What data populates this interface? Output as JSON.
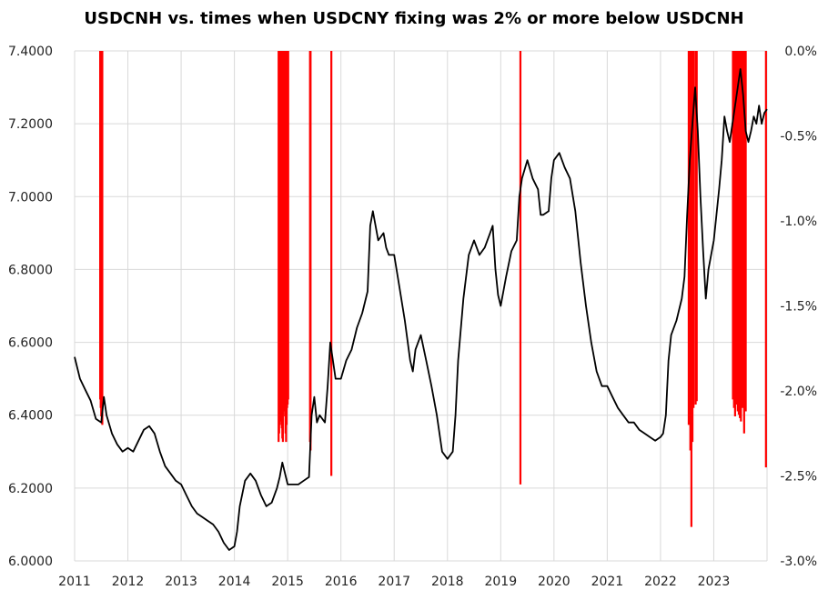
{
  "chart_data": {
    "type": "line",
    "title": "USDCNH vs. times when USDCNY fixing was 2% or more below USDCNH",
    "grid": true,
    "legend": "none",
    "x_axis": {
      "ticks": [
        "2011",
        "2012",
        "2013",
        "2014",
        "2015",
        "2016",
        "2017",
        "2018",
        "2019",
        "2020",
        "2021",
        "2022",
        "2023"
      ],
      "range": [
        2011.0,
        2024.0
      ]
    },
    "y_left": {
      "ticks": [
        "7.4000",
        "7.2000",
        "7.0000",
        "6.8000",
        "6.6000",
        "6.4000",
        "6.2000",
        "6.0000"
      ],
      "range": [
        6.0,
        7.4
      ]
    },
    "y_right": {
      "ticks": [
        "0.0%",
        "-0.5%",
        "-1.0%",
        "-1.5%",
        "-2.0%",
        "-2.5%",
        "-3.0%"
      ],
      "range": [
        -3.0,
        0.0
      ]
    },
    "series": [
      {
        "axis": "left",
        "color": "#000000",
        "points": [
          [
            2011.0,
            6.56
          ],
          [
            2011.1,
            6.5
          ],
          [
            2011.2,
            6.47
          ],
          [
            2011.3,
            6.44
          ],
          [
            2011.4,
            6.39
          ],
          [
            2011.5,
            6.38
          ],
          [
            2011.55,
            6.45
          ],
          [
            2011.6,
            6.4
          ],
          [
            2011.7,
            6.35
          ],
          [
            2011.8,
            6.32
          ],
          [
            2011.9,
            6.3
          ],
          [
            2012.0,
            6.31
          ],
          [
            2012.1,
            6.3
          ],
          [
            2012.2,
            6.33
          ],
          [
            2012.3,
            6.36
          ],
          [
            2012.4,
            6.37
          ],
          [
            2012.5,
            6.35
          ],
          [
            2012.6,
            6.3
          ],
          [
            2012.7,
            6.26
          ],
          [
            2012.8,
            6.24
          ],
          [
            2012.9,
            6.22
          ],
          [
            2013.0,
            6.21
          ],
          [
            2013.1,
            6.18
          ],
          [
            2013.2,
            6.15
          ],
          [
            2013.3,
            6.13
          ],
          [
            2013.4,
            6.12
          ],
          [
            2013.5,
            6.11
          ],
          [
            2013.6,
            6.1
          ],
          [
            2013.7,
            6.08
          ],
          [
            2013.8,
            6.05
          ],
          [
            2013.9,
            6.03
          ],
          [
            2014.0,
            6.04
          ],
          [
            2014.05,
            6.08
          ],
          [
            2014.1,
            6.15
          ],
          [
            2014.2,
            6.22
          ],
          [
            2014.3,
            6.24
          ],
          [
            2014.4,
            6.22
          ],
          [
            2014.5,
            6.18
          ],
          [
            2014.6,
            6.15
          ],
          [
            2014.7,
            6.16
          ],
          [
            2014.8,
            6.2
          ],
          [
            2014.85,
            6.23
          ],
          [
            2014.9,
            6.27
          ],
          [
            2015.0,
            6.21
          ],
          [
            2015.1,
            6.21
          ],
          [
            2015.2,
            6.21
          ],
          [
            2015.3,
            6.22
          ],
          [
            2015.4,
            6.23
          ],
          [
            2015.45,
            6.4
          ],
          [
            2015.5,
            6.45
          ],
          [
            2015.55,
            6.38
          ],
          [
            2015.6,
            6.4
          ],
          [
            2015.7,
            6.38
          ],
          [
            2015.75,
            6.48
          ],
          [
            2015.8,
            6.6
          ],
          [
            2015.9,
            6.5
          ],
          [
            2016.0,
            6.5
          ],
          [
            2016.1,
            6.55
          ],
          [
            2016.2,
            6.58
          ],
          [
            2016.3,
            6.64
          ],
          [
            2016.4,
            6.68
          ],
          [
            2016.5,
            6.74
          ],
          [
            2016.55,
            6.92
          ],
          [
            2016.6,
            6.96
          ],
          [
            2016.7,
            6.88
          ],
          [
            2016.8,
            6.9
          ],
          [
            2016.85,
            6.86
          ],
          [
            2016.9,
            6.84
          ],
          [
            2017.0,
            6.84
          ],
          [
            2017.1,
            6.75
          ],
          [
            2017.2,
            6.66
          ],
          [
            2017.3,
            6.55
          ],
          [
            2017.35,
            6.52
          ],
          [
            2017.4,
            6.58
          ],
          [
            2017.5,
            6.62
          ],
          [
            2017.6,
            6.55
          ],
          [
            2017.7,
            6.48
          ],
          [
            2017.8,
            6.4
          ],
          [
            2017.9,
            6.3
          ],
          [
            2018.0,
            6.28
          ],
          [
            2018.1,
            6.3
          ],
          [
            2018.15,
            6.4
          ],
          [
            2018.2,
            6.55
          ],
          [
            2018.3,
            6.72
          ],
          [
            2018.4,
            6.84
          ],
          [
            2018.5,
            6.88
          ],
          [
            2018.6,
            6.84
          ],
          [
            2018.7,
            6.86
          ],
          [
            2018.8,
            6.9
          ],
          [
            2018.85,
            6.92
          ],
          [
            2018.9,
            6.8
          ],
          [
            2018.95,
            6.73
          ],
          [
            2019.0,
            6.7
          ],
          [
            2019.1,
            6.78
          ],
          [
            2019.2,
            6.85
          ],
          [
            2019.3,
            6.88
          ],
          [
            2019.35,
            7.0
          ],
          [
            2019.4,
            7.05
          ],
          [
            2019.5,
            7.1
          ],
          [
            2019.6,
            7.05
          ],
          [
            2019.7,
            7.02
          ],
          [
            2019.75,
            6.95
          ],
          [
            2019.8,
            6.95
          ],
          [
            2019.9,
            6.96
          ],
          [
            2019.95,
            7.05
          ],
          [
            2020.0,
            7.1
          ],
          [
            2020.1,
            7.12
          ],
          [
            2020.2,
            7.08
          ],
          [
            2020.3,
            7.05
          ],
          [
            2020.4,
            6.96
          ],
          [
            2020.5,
            6.82
          ],
          [
            2020.6,
            6.7
          ],
          [
            2020.7,
            6.6
          ],
          [
            2020.8,
            6.52
          ],
          [
            2020.9,
            6.48
          ],
          [
            2021.0,
            6.48
          ],
          [
            2021.1,
            6.45
          ],
          [
            2021.2,
            6.42
          ],
          [
            2021.3,
            6.4
          ],
          [
            2021.4,
            6.38
          ],
          [
            2021.5,
            6.38
          ],
          [
            2021.6,
            6.36
          ],
          [
            2021.7,
            6.35
          ],
          [
            2021.8,
            6.34
          ],
          [
            2021.9,
            6.33
          ],
          [
            2022.0,
            6.34
          ],
          [
            2022.05,
            6.35
          ],
          [
            2022.1,
            6.4
          ],
          [
            2022.15,
            6.55
          ],
          [
            2022.2,
            6.62
          ],
          [
            2022.3,
            6.66
          ],
          [
            2022.4,
            6.72
          ],
          [
            2022.45,
            6.78
          ],
          [
            2022.5,
            6.95
          ],
          [
            2022.55,
            7.1
          ],
          [
            2022.6,
            7.2
          ],
          [
            2022.65,
            7.3
          ],
          [
            2022.7,
            7.18
          ],
          [
            2022.75,
            7.0
          ],
          [
            2022.8,
            6.85
          ],
          [
            2022.85,
            6.72
          ],
          [
            2022.9,
            6.8
          ],
          [
            2023.0,
            6.88
          ],
          [
            2023.1,
            7.02
          ],
          [
            2023.15,
            7.1
          ],
          [
            2023.2,
            7.22
          ],
          [
            2023.25,
            7.18
          ],
          [
            2023.3,
            7.15
          ],
          [
            2023.4,
            7.25
          ],
          [
            2023.45,
            7.3
          ],
          [
            2023.5,
            7.35
          ],
          [
            2023.55,
            7.28
          ],
          [
            2023.6,
            7.18
          ],
          [
            2023.65,
            7.15
          ],
          [
            2023.7,
            7.18
          ],
          [
            2023.75,
            7.22
          ],
          [
            2023.8,
            7.2
          ],
          [
            2023.85,
            7.25
          ],
          [
            2023.9,
            7.2
          ],
          [
            2023.95,
            7.23
          ],
          [
            2024.0,
            7.24
          ]
        ]
      },
      {
        "axis": "right",
        "color": "#ff0000",
        "type": "bar",
        "points": [
          [
            2011.48,
            -2.05
          ],
          [
            2011.49,
            -2.1
          ],
          [
            2011.5,
            -2.15
          ],
          [
            2011.51,
            -2.18
          ],
          [
            2011.52,
            -2.2
          ],
          [
            2014.83,
            -2.3
          ],
          [
            2014.84,
            -2.25
          ],
          [
            2014.85,
            -2.2
          ],
          [
            2014.86,
            -2.15
          ],
          [
            2014.87,
            -2.1
          ],
          [
            2014.88,
            -2.18
          ],
          [
            2014.89,
            -2.22
          ],
          [
            2014.9,
            -2.28
          ],
          [
            2014.91,
            -2.3
          ],
          [
            2014.92,
            -2.05
          ],
          [
            2014.93,
            -2.1
          ],
          [
            2014.94,
            -2.12
          ],
          [
            2014.95,
            -2.15
          ],
          [
            2014.96,
            -2.25
          ],
          [
            2014.97,
            -2.3
          ],
          [
            2014.98,
            -2.2
          ],
          [
            2014.99,
            -2.1
          ],
          [
            2015.0,
            -2.08
          ],
          [
            2015.01,
            -2.05
          ],
          [
            2015.42,
            -2.3
          ],
          [
            2015.43,
            -2.35
          ],
          [
            2015.82,
            -2.5
          ],
          [
            2019.37,
            -2.55
          ],
          [
            2022.53,
            -2.2
          ],
          [
            2022.56,
            -2.35
          ],
          [
            2022.58,
            -2.8
          ],
          [
            2022.6,
            -2.3
          ],
          [
            2022.62,
            -2.1
          ],
          [
            2022.66,
            -2.08
          ],
          [
            2022.68,
            -2.06
          ],
          [
            2023.36,
            -2.05
          ],
          [
            2023.38,
            -2.1
          ],
          [
            2023.4,
            -2.15
          ],
          [
            2023.43,
            -2.08
          ],
          [
            2023.45,
            -2.12
          ],
          [
            2023.47,
            -2.14
          ],
          [
            2023.49,
            -2.16
          ],
          [
            2023.51,
            -2.18
          ],
          [
            2023.54,
            -2.1
          ],
          [
            2023.57,
            -2.25
          ],
          [
            2023.6,
            -2.12
          ],
          [
            2023.98,
            -2.45
          ]
        ]
      }
    ]
  }
}
